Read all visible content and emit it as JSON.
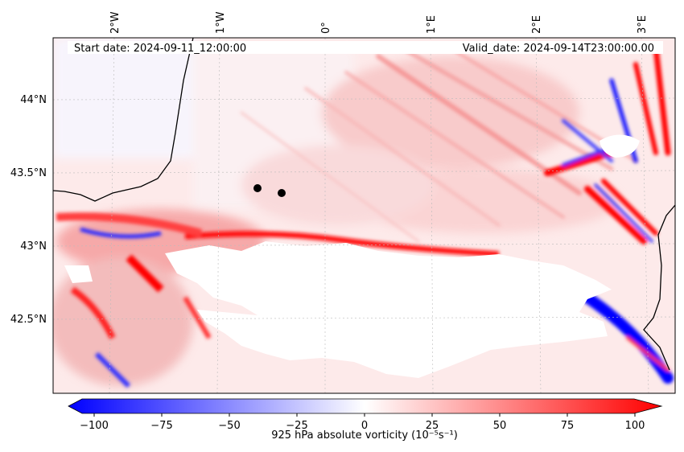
{
  "header": {
    "start_date": "Start date: 2024-09-11_12:00:00",
    "valid_date": "Valid_date: 2024-09-14T23:00:00.00"
  },
  "map": {
    "lon_ticks": [
      "2°W",
      "1°W",
      "0°",
      "1°E",
      "2°E",
      "3°E"
    ],
    "lat_ticks": [
      "44°N",
      "43.5°N",
      "43°N",
      "42.5°N"
    ],
    "extent": {
      "lon_min": -2.6,
      "lon_max": 3.1,
      "lat_min": 42.0,
      "lat_max": 44.4
    },
    "field": "925 hPa absolute vorticity",
    "markers": [
      {
        "lon": -0.7,
        "lat": 43.38
      },
      {
        "lon": -0.46,
        "lat": 43.35
      }
    ],
    "colors": {
      "positive": "#ff0000",
      "negative": "#0000ff",
      "neutral": "#ffffff",
      "land_mask": "#ffffff"
    }
  },
  "colorbar": {
    "ticks": [
      "−100",
      "−75",
      "−50",
      "−25",
      "0",
      "25",
      "50",
      "75",
      "100"
    ],
    "label": "925 hPa absolute vorticity (10⁻⁵s⁻¹)",
    "min": -100,
    "max": 100,
    "cmap": "bwr"
  }
}
